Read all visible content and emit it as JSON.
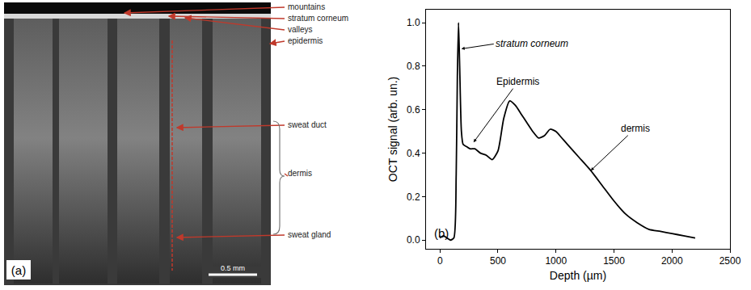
{
  "panel_a": {
    "letter": "(a)",
    "scale_bar": "0.5 mm",
    "labels": [
      "mountains",
      "stratum corneum",
      "valleys",
      "epidermis",
      "sweat duct",
      "dermis",
      "sweat gland"
    ]
  },
  "chart_data": {
    "type": "line",
    "panel_letter": "(b)",
    "x_label": "Depth (µm)",
    "y_label": "OCT signal (arb. un.)",
    "color": "#000000",
    "x": [
      0,
      30,
      60,
      90,
      120,
      140,
      150,
      160,
      170,
      185,
      200,
      230,
      260,
      300,
      350,
      400,
      450,
      500,
      550,
      600,
      650,
      700,
      750,
      800,
      850,
      900,
      950,
      1000,
      1050,
      1100,
      1200,
      1300,
      1400,
      1500,
      1600,
      1700,
      1800,
      1900,
      2000,
      2100,
      2200
    ],
    "values": [
      0.01,
      0.02,
      0.01,
      0.0,
      0.01,
      0.3,
      0.75,
      1.0,
      0.8,
      0.5,
      0.44,
      0.43,
      0.42,
      0.42,
      0.4,
      0.39,
      0.37,
      0.41,
      0.56,
      0.64,
      0.62,
      0.58,
      0.54,
      0.5,
      0.47,
      0.48,
      0.51,
      0.5,
      0.47,
      0.44,
      0.38,
      0.32,
      0.25,
      0.18,
      0.12,
      0.08,
      0.05,
      0.04,
      0.03,
      0.02,
      0.01
    ],
    "xlim": [
      -120,
      2500
    ],
    "ylim": [
      -0.04,
      1.06
    ],
    "xticks": [
      0,
      500,
      1000,
      1500,
      2000,
      2500
    ],
    "yticks": [
      {
        "value": 0,
        "label": "0.0"
      },
      {
        "value": 0.2,
        "label": "0.2"
      },
      {
        "value": 0.4,
        "label": "0.4"
      },
      {
        "value": 0.6,
        "label": "0.6"
      },
      {
        "value": 0.8,
        "label": "0.8"
      },
      {
        "value": 1,
        "label": "1.0"
      }
    ],
    "grid": false,
    "annotations": [
      "stratum corneum",
      "Epidermis",
      "dermis"
    ]
  }
}
